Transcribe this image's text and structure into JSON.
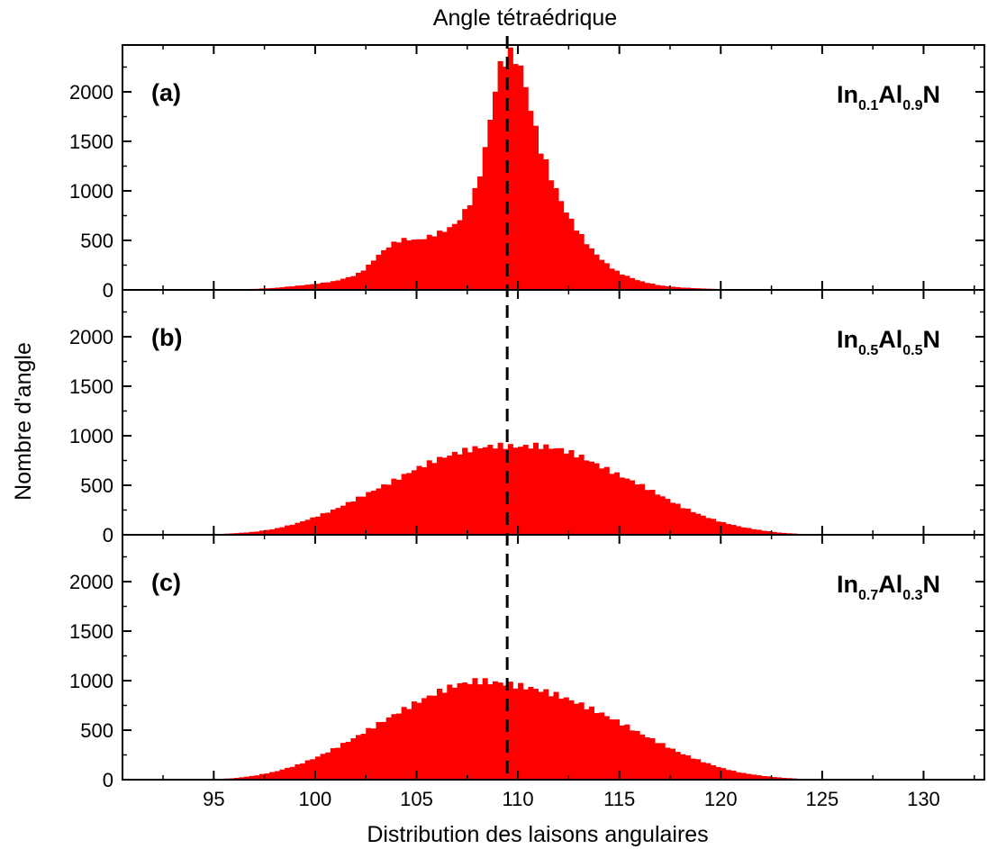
{
  "chart_data": {
    "type": "bar",
    "title": "Angle tétraédrique",
    "xlabel": "Distribution des laisons angulaires",
    "ylabel": "Nombre d'angle",
    "xlim": [
      90.5,
      133
    ],
    "ylim": [
      0,
      2400
    ],
    "xticks": [
      95,
      100,
      105,
      110,
      115,
      120,
      125,
      130
    ],
    "yticks": [
      0,
      500,
      1000,
      1500,
      2000
    ],
    "reference_line_x": 109.47,
    "bar_color": "#ff0000",
    "panels": [
      {
        "letter": "(a)",
        "composition": {
          "el1": "In",
          "s1": "0.1",
          "el2": "Al",
          "s2": "0.9",
          "el3": "N"
        },
        "x": [
          96,
          97,
          98,
          99,
          100,
          101,
          102,
          102.5,
          103,
          103.5,
          104,
          104.5,
          105,
          105.5,
          106,
          106.5,
          107,
          107.5,
          108,
          108.5,
          109,
          109.5,
          110,
          110.5,
          111,
          111.5,
          112,
          112.5,
          113,
          113.5,
          114,
          114.5,
          115,
          116,
          117,
          118,
          119,
          120,
          121
        ],
        "values": [
          5,
          10,
          20,
          40,
          60,
          90,
          150,
          220,
          330,
          420,
          490,
          515,
          500,
          530,
          570,
          610,
          680,
          830,
          1050,
          1550,
          2200,
          2380,
          2330,
          1950,
          1500,
          1200,
          950,
          740,
          580,
          440,
          330,
          240,
          170,
          90,
          45,
          25,
          15,
          8,
          4
        ]
      },
      {
        "letter": "(b)",
        "composition": {
          "el1": "In",
          "s1": "0.5",
          "el2": "Al",
          "s2": "0.5",
          "el3": "N"
        },
        "x": [
          95,
          96,
          97,
          98,
          99,
          100,
          101,
          102,
          103,
          104,
          105,
          106,
          107,
          108,
          109,
          110,
          111,
          112,
          113,
          114,
          115,
          116,
          117,
          118,
          119,
          120,
          121,
          122,
          123,
          124
        ],
        "values": [
          5,
          15,
          30,
          60,
          110,
          180,
          260,
          360,
          460,
          560,
          670,
          760,
          830,
          880,
          900,
          890,
          900,
          870,
          800,
          700,
          600,
          510,
          400,
          290,
          200,
          130,
          80,
          45,
          20,
          8
        ]
      },
      {
        "letter": "(c)",
        "composition": {
          "el1": "In",
          "s1": "0.7",
          "el2": "Al",
          "s2": "0.3",
          "el3": "N"
        },
        "x": [
          95,
          96,
          97,
          98,
          99,
          100,
          101,
          102,
          103,
          104,
          105,
          106,
          107,
          108,
          109,
          110,
          111,
          112,
          113,
          114,
          115,
          116,
          117,
          118,
          119,
          120,
          121,
          122,
          123,
          124
        ],
        "values": [
          5,
          15,
          40,
          80,
          140,
          220,
          320,
          430,
          550,
          670,
          780,
          880,
          960,
          1000,
          980,
          950,
          910,
          850,
          770,
          680,
          580,
          470,
          370,
          270,
          190,
          120,
          70,
          40,
          20,
          8
        ]
      }
    ]
  }
}
